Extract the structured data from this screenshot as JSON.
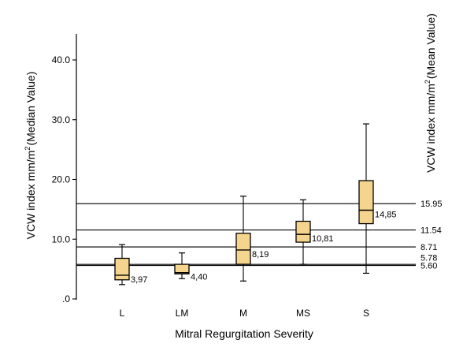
{
  "chart_data": {
    "type": "box",
    "xlabel": "Mitral Regurgitation Severity",
    "ylabel_left": "VCW index mm/m",
    "ylabel_left_suffix": "(Median Value)",
    "ylabel_right": "VCW index mm/m",
    "ylabel_right_suffix": "(Mean Value)",
    "ylabel_exponent": "2",
    "ylim": [
      0,
      44
    ],
    "y_ticks": [
      {
        "value": 0,
        "label": ".0"
      },
      {
        "value": 10,
        "label": "10.0"
      },
      {
        "value": 20,
        "label": "20.0"
      },
      {
        "value": 30,
        "label": "30.0"
      },
      {
        "value": 40,
        "label": "40.0"
      }
    ],
    "categories": [
      "L",
      "LM",
      "M",
      "MS",
      "S"
    ],
    "boxes": [
      {
        "category": "L",
        "min": 2.4,
        "q1": 3.2,
        "median": 3.97,
        "q3": 6.8,
        "max": 9.1,
        "median_label": "3,97"
      },
      {
        "category": "LM",
        "min": 3.4,
        "q1": 4.2,
        "median": 4.4,
        "q3": 5.8,
        "max": 7.7,
        "median_label": "4,40"
      },
      {
        "category": "M",
        "min": 3.0,
        "q1": 5.8,
        "median": 8.19,
        "q3": 11.0,
        "max": 17.2,
        "median_label": "8,19"
      },
      {
        "category": "MS",
        "min": 5.8,
        "q1": 9.5,
        "median": 10.81,
        "q3": 13.0,
        "max": 16.6,
        "median_label": "10,81"
      },
      {
        "category": "S",
        "min": 4.3,
        "q1": 12.6,
        "median": 14.85,
        "q3": 19.8,
        "max": 29.3,
        "median_label": "14,85"
      }
    ],
    "reference_lines": [
      {
        "value": 15.95,
        "label": "15.95"
      },
      {
        "value": 11.54,
        "label": "11.54"
      },
      {
        "value": 8.71,
        "label": "8.71"
      },
      {
        "value": 5.78,
        "label": "5.78"
      },
      {
        "value": 5.6,
        "label": "5.60"
      }
    ],
    "box_color": "#f5d58e",
    "line_color": "#000000",
    "grid": false
  }
}
